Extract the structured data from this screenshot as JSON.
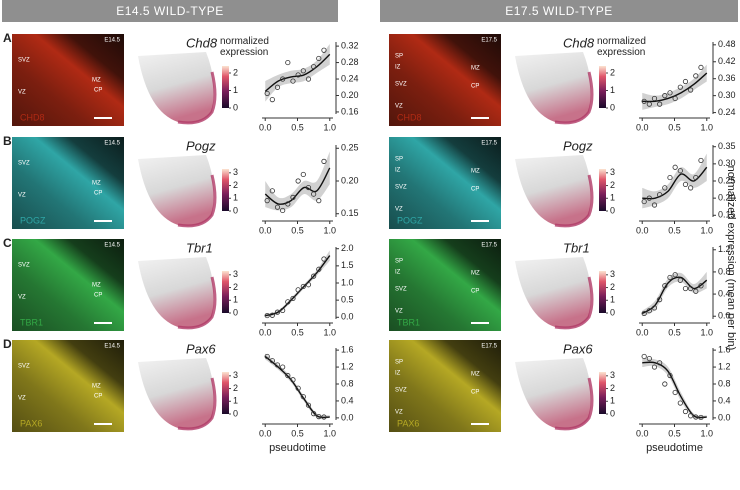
{
  "headers": [
    "E14.5 WILD-TYPE",
    "E17.5 WILD-TYPE"
  ],
  "row_letters": [
    "A",
    "B",
    "C",
    "D"
  ],
  "y_axis_label": "normalized expression (mean per bin)",
  "micrographs": [
    {
      "stage": "E14.5",
      "regions": [
        "SVZ",
        "VZ",
        "MZ",
        "CP"
      ],
      "protein": "CHD8",
      "color": "#b02a14"
    },
    {
      "stage": "E17.5",
      "regions": [
        "SP",
        "IZ",
        "SVZ",
        "VZ",
        "MZ",
        "CP"
      ],
      "protein": "CHD8",
      "color": "#b02a14"
    },
    {
      "stage": "E14.5",
      "regions": [
        "SVZ",
        "VZ",
        "MZ",
        "CP"
      ],
      "protein": "POGZ",
      "color": "#2fa6a6"
    },
    {
      "stage": "E17.5",
      "regions": [
        "SP",
        "IZ",
        "SVZ",
        "VZ",
        "MZ",
        "CP"
      ],
      "protein": "POGZ",
      "color": "#2fa6a6"
    },
    {
      "stage": "E14.5",
      "regions": [
        "SVZ",
        "VZ",
        "MZ",
        "CP"
      ],
      "protein": "TBR1",
      "color": "#33a846"
    },
    {
      "stage": "E17.5",
      "regions": [
        "SP",
        "IZ",
        "SVZ",
        "VZ",
        "MZ",
        "CP"
      ],
      "protein": "TBR1",
      "color": "#33a846"
    },
    {
      "stage": "E14.5",
      "regions": [
        "SVZ",
        "VZ",
        "MZ",
        "CP"
      ],
      "protein": "PAX6",
      "color": "#b5a824"
    },
    {
      "stage": "E17.5",
      "regions": [
        "SP",
        "IZ",
        "SVZ",
        "VZ",
        "MZ",
        "CP"
      ],
      "protein": "PAX6",
      "color": "#b5a824"
    }
  ],
  "chart_data": [
    {
      "type": "scatter",
      "title": "Chd8",
      "colorbar": {
        "label": "normalized expression",
        "lim": [
          0,
          2.4
        ],
        "ticks": [
          0,
          1,
          2
        ]
      },
      "x": [
        0.03,
        0.11,
        0.19,
        0.27,
        0.35,
        0.43,
        0.51,
        0.59,
        0.67,
        0.75,
        0.83,
        0.91
      ],
      "values": [
        0.205,
        0.19,
        0.22,
        0.24,
        0.28,
        0.235,
        0.25,
        0.26,
        0.24,
        0.27,
        0.29,
        0.31
      ],
      "fit_x": [
        0,
        0.2,
        0.4,
        0.6,
        0.8,
        1.0
      ],
      "fit_y": [
        0.21,
        0.235,
        0.245,
        0.25,
        0.27,
        0.3
      ],
      "ci_lower": [
        0.185,
        0.22,
        0.23,
        0.235,
        0.255,
        0.275
      ],
      "ci_upper": [
        0.235,
        0.25,
        0.26,
        0.265,
        0.285,
        0.325
      ],
      "xlim": [
        -0.05,
        1.05
      ],
      "ylim": [
        0.155,
        0.33
      ],
      "xticks": [
        {
          "value": 0,
          "label": "0.0"
        },
        {
          "value": 0.5,
          "label": "0.5"
        },
        {
          "value": 1,
          "label": "1.0"
        }
      ],
      "yticks": [
        {
          "value": 0.16,
          "label": "0.16"
        },
        {
          "value": 0.2,
          "label": "0.20"
        },
        {
          "value": 0.24,
          "label": "0.24"
        },
        {
          "value": 0.28,
          "label": "0.28"
        },
        {
          "value": 0.32,
          "label": "0.32"
        }
      ]
    },
    {
      "type": "scatter",
      "title": "Chd8",
      "colorbar": {
        "label": "normalized expression",
        "lim": [
          0,
          2.4
        ],
        "ticks": [
          0,
          1,
          2
        ]
      },
      "x": [
        0.03,
        0.11,
        0.19,
        0.27,
        0.35,
        0.43,
        0.51,
        0.59,
        0.67,
        0.75,
        0.83,
        0.91
      ],
      "values": [
        0.28,
        0.27,
        0.29,
        0.27,
        0.3,
        0.31,
        0.29,
        0.33,
        0.35,
        0.32,
        0.37,
        0.4
      ],
      "fit_x": [
        0,
        0.2,
        0.4,
        0.6,
        0.8,
        1.0
      ],
      "fit_y": [
        0.28,
        0.28,
        0.29,
        0.31,
        0.34,
        0.38
      ],
      "ci_lower": [
        0.25,
        0.26,
        0.27,
        0.29,
        0.32,
        0.35
      ],
      "ci_upper": [
        0.31,
        0.3,
        0.31,
        0.33,
        0.36,
        0.41
      ],
      "xlim": [
        -0.05,
        1.05
      ],
      "ylim": [
        0.235,
        0.49
      ],
      "xticks": [
        {
          "value": 0,
          "label": "0.0"
        },
        {
          "value": 0.5,
          "label": "0.5"
        },
        {
          "value": 1,
          "label": "1.0"
        }
      ],
      "yticks": [
        {
          "value": 0.24,
          "label": "0.24"
        },
        {
          "value": 0.3,
          "label": "0.30"
        },
        {
          "value": 0.36,
          "label": "0.36"
        },
        {
          "value": 0.42,
          "label": "0.42"
        },
        {
          "value": 0.48,
          "label": "0.48"
        }
      ]
    },
    {
      "type": "scatter",
      "title": "Pogz",
      "colorbar": {
        "lim": [
          0,
          3.3
        ],
        "ticks": [
          0,
          1,
          2,
          3
        ]
      },
      "x": [
        0.03,
        0.11,
        0.19,
        0.27,
        0.35,
        0.43,
        0.51,
        0.59,
        0.67,
        0.75,
        0.83,
        0.91
      ],
      "values": [
        0.17,
        0.185,
        0.16,
        0.155,
        0.165,
        0.175,
        0.2,
        0.21,
        0.19,
        0.18,
        0.17,
        0.23
      ],
      "fit_x": [
        0,
        0.2,
        0.4,
        0.6,
        0.8,
        1.0
      ],
      "fit_y": [
        0.18,
        0.165,
        0.17,
        0.19,
        0.185,
        0.22
      ],
      "ci_lower": [
        0.16,
        0.155,
        0.16,
        0.18,
        0.17,
        0.195
      ],
      "ci_upper": [
        0.2,
        0.175,
        0.18,
        0.2,
        0.2,
        0.245
      ],
      "xlim": [
        -0.05,
        1.05
      ],
      "ylim": [
        0.145,
        0.255
      ],
      "xticks": [
        {
          "value": 0,
          "label": "0.0"
        },
        {
          "value": 0.5,
          "label": "0.5"
        },
        {
          "value": 1,
          "label": "1.0"
        }
      ],
      "yticks": [
        {
          "value": 0.15,
          "label": "0.15"
        },
        {
          "value": 0.2,
          "label": "0.20"
        },
        {
          "value": 0.25,
          "label": "0.25"
        }
      ]
    },
    {
      "type": "scatter",
      "title": "Pogz",
      "colorbar": {
        "lim": [
          0,
          3.3
        ],
        "ticks": [
          0,
          1,
          2,
          3
        ]
      },
      "x": [
        0.03,
        0.11,
        0.19,
        0.27,
        0.35,
        0.43,
        0.51,
        0.59,
        0.67,
        0.75,
        0.83,
        0.91
      ],
      "values": [
        0.19,
        0.2,
        0.18,
        0.21,
        0.23,
        0.26,
        0.29,
        0.28,
        0.24,
        0.23,
        0.26,
        0.31
      ],
      "fit_x": [
        0,
        0.2,
        0.4,
        0.6,
        0.8,
        1.0
      ],
      "fit_y": [
        0.2,
        0.2,
        0.22,
        0.27,
        0.25,
        0.29
      ],
      "ci_lower": [
        0.17,
        0.18,
        0.2,
        0.25,
        0.23,
        0.25
      ],
      "ci_upper": [
        0.23,
        0.22,
        0.24,
        0.29,
        0.27,
        0.33
      ],
      "xlim": [
        -0.05,
        1.05
      ],
      "ylim": [
        0.145,
        0.355
      ],
      "xticks": [
        {
          "value": 0,
          "label": "0.0"
        },
        {
          "value": 0.5,
          "label": "0.5"
        },
        {
          "value": 1,
          "label": "1.0"
        }
      ],
      "yticks": [
        {
          "value": 0.15,
          "label": "0.15"
        },
        {
          "value": 0.2,
          "label": "0.20"
        },
        {
          "value": 0.25,
          "label": "0.25"
        },
        {
          "value": 0.3,
          "label": "0.30"
        },
        {
          "value": 0.35,
          "label": "0.35"
        }
      ]
    },
    {
      "type": "scatter",
      "title": "Tbr1",
      "colorbar": {
        "lim": [
          0,
          3.3
        ],
        "ticks": [
          0,
          1,
          2,
          3
        ]
      },
      "x": [
        0.03,
        0.11,
        0.19,
        0.27,
        0.35,
        0.43,
        0.51,
        0.59,
        0.67,
        0.75,
        0.83,
        0.91
      ],
      "values": [
        0.05,
        0.06,
        0.15,
        0.2,
        0.45,
        0.55,
        0.8,
        0.9,
        0.95,
        1.2,
        1.4,
        1.7
      ],
      "fit_x": [
        0,
        0.2,
        0.4,
        0.6,
        0.8,
        1.0
      ],
      "fit_y": [
        0.05,
        0.15,
        0.5,
        0.9,
        1.3,
        1.8
      ],
      "ci_lower": [
        0,
        0.1,
        0.44,
        0.84,
        1.22,
        1.65
      ],
      "ci_upper": [
        0.1,
        0.2,
        0.56,
        0.96,
        1.38,
        1.95
      ],
      "xlim": [
        -0.05,
        1.05
      ],
      "ylim": [
        -0.05,
        2.05
      ],
      "xticks": [
        {
          "value": 0,
          "label": "0.0"
        },
        {
          "value": 0.5,
          "label": "0.5"
        },
        {
          "value": 1,
          "label": "1.0"
        }
      ],
      "yticks": [
        {
          "value": 0,
          "label": "0.0"
        },
        {
          "value": 0.5,
          "label": "0.5"
        },
        {
          "value": 1,
          "label": "1.0"
        },
        {
          "value": 1.5,
          "label": "1.5"
        },
        {
          "value": 2,
          "label": "2.0"
        }
      ]
    },
    {
      "type": "scatter",
      "title": "Tbr1",
      "colorbar": {
        "lim": [
          0,
          3.3
        ],
        "ticks": [
          0,
          1,
          2,
          3
        ]
      },
      "x": [
        0.03,
        0.11,
        0.19,
        0.27,
        0.35,
        0.43,
        0.51,
        0.59,
        0.67,
        0.75,
        0.83,
        0.91
      ],
      "values": [
        0.05,
        0.1,
        0.15,
        0.3,
        0.55,
        0.7,
        0.75,
        0.65,
        0.5,
        0.5,
        0.45,
        0.55
      ],
      "fit_x": [
        0,
        0.2,
        0.4,
        0.6,
        0.8,
        1.0
      ],
      "fit_y": [
        0.05,
        0.2,
        0.6,
        0.7,
        0.5,
        0.65
      ],
      "ci_lower": [
        0,
        0.12,
        0.52,
        0.62,
        0.42,
        0.5
      ],
      "ci_upper": [
        0.1,
        0.28,
        0.68,
        0.78,
        0.58,
        0.8
      ],
      "xlim": [
        -0.05,
        1.05
      ],
      "ylim": [
        -0.05,
        1.25
      ],
      "xticks": [
        {
          "value": 0,
          "label": "0.0"
        },
        {
          "value": 0.5,
          "label": "0.5"
        },
        {
          "value": 1,
          "label": "1.0"
        }
      ],
      "yticks": [
        {
          "value": 0,
          "label": "0.0"
        },
        {
          "value": 0.4,
          "label": "0.4"
        },
        {
          "value": 0.8,
          "label": "0.8"
        },
        {
          "value": 1.2,
          "label": "1.2"
        }
      ]
    },
    {
      "type": "scatter",
      "title": "Pax6",
      "x_label": "pseudotime",
      "colorbar": {
        "lim": [
          0,
          3.3
        ],
        "ticks": [
          0,
          1,
          2,
          3
        ]
      },
      "x": [
        0.03,
        0.11,
        0.19,
        0.27,
        0.35,
        0.43,
        0.51,
        0.59,
        0.67,
        0.75,
        0.83,
        0.91
      ],
      "values": [
        1.45,
        1.35,
        1.25,
        1.2,
        1.0,
        0.9,
        0.7,
        0.5,
        0.3,
        0.1,
        0.03,
        0.02
      ],
      "fit_x": [
        0,
        0.2,
        0.4,
        0.6,
        0.8,
        1.0
      ],
      "fit_y": [
        1.45,
        1.2,
        0.9,
        0.45,
        0.05,
        0.02
      ],
      "ci_lower": [
        1.38,
        1.14,
        0.84,
        0.39,
        0,
        0
      ],
      "ci_upper": [
        1.52,
        1.26,
        0.96,
        0.51,
        0.1,
        0.06
      ],
      "xlim": [
        -0.05,
        1.05
      ],
      "ylim": [
        -0.05,
        1.65
      ],
      "xticks": [
        {
          "value": 0,
          "label": "0.0"
        },
        {
          "value": 0.5,
          "label": "0.5"
        },
        {
          "value": 1,
          "label": "1.0"
        }
      ],
      "yticks": [
        {
          "value": 0,
          "label": "0.0"
        },
        {
          "value": 0.4,
          "label": "0.4"
        },
        {
          "value": 0.8,
          "label": "0.8"
        },
        {
          "value": 1.2,
          "label": "1.2"
        },
        {
          "value": 1.6,
          "label": "1.6"
        }
      ]
    },
    {
      "type": "scatter",
      "title": "Pax6",
      "x_label": "pseudotime",
      "colorbar": {
        "lim": [
          0,
          3.3
        ],
        "ticks": [
          0,
          1,
          2,
          3
        ]
      },
      "x": [
        0.03,
        0.11,
        0.19,
        0.27,
        0.35,
        0.43,
        0.51,
        0.59,
        0.67,
        0.75,
        0.83,
        0.91
      ],
      "values": [
        1.45,
        1.4,
        1.2,
        1.3,
        0.8,
        1.0,
        0.6,
        0.35,
        0.15,
        0.05,
        0.02,
        0.01
      ],
      "fit_x": [
        0,
        0.2,
        0.4,
        0.6,
        0.8,
        1.0
      ],
      "fit_y": [
        1.3,
        1.3,
        1.1,
        0.5,
        0.05,
        0.02
      ],
      "ci_lower": [
        1.2,
        1.22,
        1.0,
        0.4,
        0,
        0
      ],
      "ci_upper": [
        1.4,
        1.38,
        1.2,
        0.6,
        0.1,
        0.06
      ],
      "xlim": [
        -0.05,
        1.05
      ],
      "ylim": [
        -0.05,
        1.65
      ],
      "xticks": [
        {
          "value": 0,
          "label": "0.0"
        },
        {
          "value": 0.5,
          "label": "0.5"
        },
        {
          "value": 1,
          "label": "1.0"
        }
      ],
      "yticks": [
        {
          "value": 0,
          "label": "0.0"
        },
        {
          "value": 0.4,
          "label": "0.4"
        },
        {
          "value": 0.8,
          "label": "0.8"
        },
        {
          "value": 1.2,
          "label": "1.2"
        },
        {
          "value": 1.6,
          "label": "1.6"
        }
      ]
    }
  ]
}
